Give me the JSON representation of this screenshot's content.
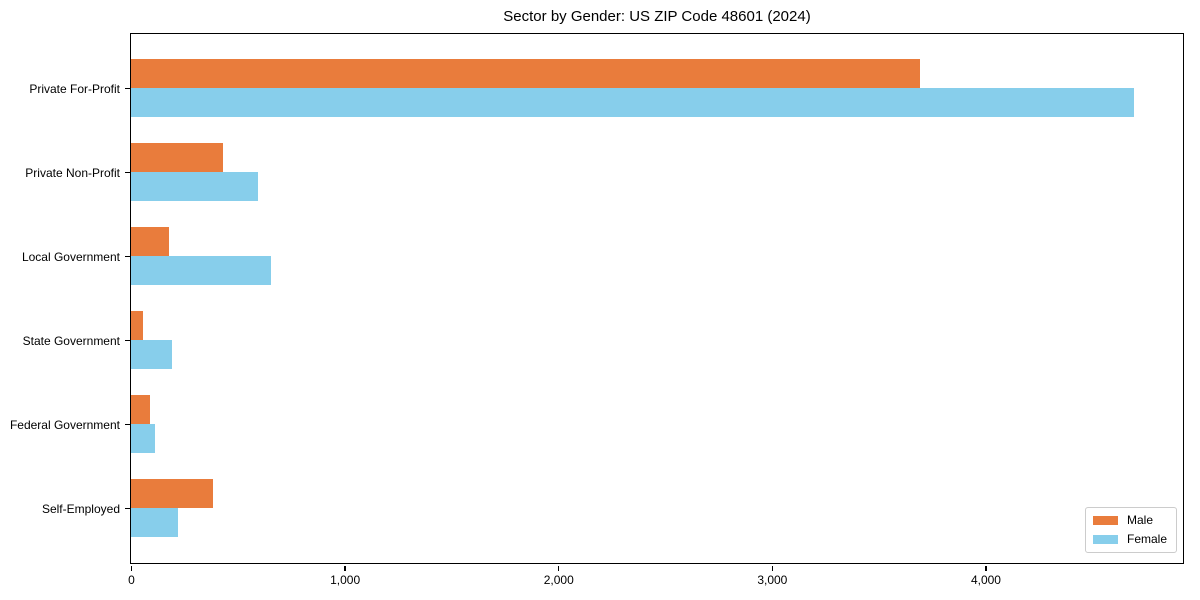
{
  "chart_data": {
    "type": "bar",
    "orientation": "horizontal",
    "title": "Sector by Gender: US ZIP Code 48601 (2024)",
    "categories": [
      "Private For-Profit",
      "Private Non-Profit",
      "Local Government",
      "State Government",
      "Federal Government",
      "Self-Employed"
    ],
    "series": [
      {
        "name": "Male",
        "color": "#E97C3C",
        "values": [
          3690,
          430,
          180,
          58,
          91,
          384
        ]
      },
      {
        "name": "Female",
        "color": "#87CEEB",
        "values": [
          4692,
          595,
          655,
          194,
          113,
          220
        ]
      }
    ],
    "xlabel": "",
    "ylabel": "",
    "xlim": [
      0,
      4920
    ],
    "xticks": [
      0,
      1000,
      2000,
      3000,
      4000
    ],
    "xtick_labels": [
      "0",
      "1,000",
      "2,000",
      "3,000",
      "4,000"
    ],
    "legend": {
      "position": "lower-right",
      "items": [
        "Male",
        "Female"
      ]
    },
    "grid": false,
    "axis_color": "#000000",
    "background_color": "#ffffff"
  }
}
